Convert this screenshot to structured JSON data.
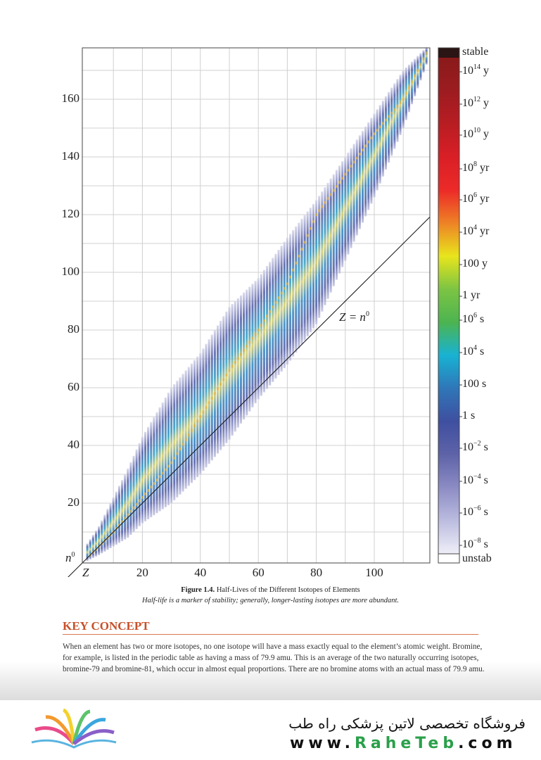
{
  "chart_data": {
    "type": "heatmap",
    "title": "Half-Lives of the Different Isotopes of Elements",
    "xlabel": "Z",
    "ylabel": "n0",
    "xlim": [
      0,
      119
    ],
    "ylim": [
      0,
      178
    ],
    "grid": true,
    "x_ticks": [
      "20",
      "40",
      "60",
      "80",
      "100"
    ],
    "y_ticks": [
      "20",
      "40",
      "60",
      "80",
      "100",
      "120",
      "140",
      "160"
    ],
    "x_tick_values": [
      20,
      40,
      60,
      80,
      100
    ],
    "y_tick_values": [
      20,
      40,
      60,
      80,
      100,
      120,
      140,
      160
    ],
    "reference_line": {
      "label_lhs": "Z = n",
      "label_sup": "0",
      "slope": 1
    },
    "isotope_band": {
      "Z": [
        1,
        5,
        10,
        15,
        20,
        30,
        40,
        50,
        60,
        70,
        80,
        90,
        100,
        110,
        118
      ],
      "N_min": [
        0,
        2,
        5,
        8,
        13,
        20,
        30,
        42,
        56,
        68,
        82,
        104,
        126,
        150,
        172
      ],
      "N_max": [
        6,
        12,
        22,
        32,
        43,
        60,
        72,
        88,
        98,
        112,
        125,
        140,
        155,
        170,
        178
      ],
      "N_stable": [
        1,
        5,
        10,
        16,
        22,
        34,
        50,
        66,
        80,
        96,
        120,
        134,
        148,
        160,
        176
      ]
    },
    "colorbar": [
      {
        "base": "stable",
        "exp": "",
        "unit": "",
        "color": "#2a1514"
      },
      {
        "base": "10",
        "exp": "14",
        "unit": " y",
        "color": "#8a1a1a"
      },
      {
        "base": "10",
        "exp": "12",
        "unit": " y",
        "color": "#9c1c20"
      },
      {
        "base": "10",
        "exp": "10",
        "unit": " y",
        "color": "#b81d22"
      },
      {
        "base": "10",
        "exp": "8",
        "unit": " yr",
        "color": "#d91f26"
      },
      {
        "base": "10",
        "exp": "6",
        "unit": " yr",
        "color": "#ec2a28"
      },
      {
        "base": "10",
        "exp": "4",
        "unit": " yr",
        "color": "#ee8226"
      },
      {
        "base": "100 y",
        "exp": "",
        "unit": "",
        "color": "#e8e51c"
      },
      {
        "base": "1 yr",
        "exp": "",
        "unit": "",
        "color": "#7cc443"
      },
      {
        "base": "10",
        "exp": "6",
        "unit": " s",
        "color": "#4cb450"
      },
      {
        "base": "10",
        "exp": "4",
        "unit": " s",
        "color": "#18b2d3"
      },
      {
        "base": "100 s",
        "exp": "",
        "unit": "",
        "color": "#2f76b8"
      },
      {
        "base": "1 s",
        "exp": "",
        "unit": "",
        "color": "#3f4fa0"
      },
      {
        "base": "10",
        "exp": "−2",
        "unit": " s",
        "color": "#5e63a8"
      },
      {
        "base": "10",
        "exp": "−4",
        "unit": " s",
        "color": "#8c8cc4"
      },
      {
        "base": "10",
        "exp": "−6",
        "unit": " s",
        "color": "#bcbce0"
      },
      {
        "base": "10",
        "exp": "−8",
        "unit": " s",
        "color": "#efeff8"
      },
      {
        "base": "unstab",
        "exp": "",
        "unit": "",
        "color": "#ffffff"
      }
    ]
  },
  "figure": {
    "number": "Figure 1.4.",
    "title": "Half-Lives of the Different Isotopes of Elements",
    "subtitle": "Half-life is a marker of stability; generally, longer-lasting isotopes are more abundant."
  },
  "key_concept": {
    "heading": "KEY CONCEPT",
    "body": "When an element has two or more isotopes, no one isotope will have a mass exactly equal to the element’s atomic weight. Bromine, for example, is listed in the periodic table as having a mass of 79.9 amu. This is an average of the two naturally occurring isotopes, bromine-79 and bromine-81, which occur in almost equal proportions. There are no bromine atoms with an actual mass of 79.9 amu."
  },
  "footer": {
    "store_name": "فروشگاه تخصصی لاتین پزشکی  راه طب",
    "url_prefix": "www.",
    "url_brand": "RaheTeb",
    "url_suffix": ".com"
  },
  "colors": {
    "accent": "#c8502a",
    "grid": "#d0d0d0"
  }
}
